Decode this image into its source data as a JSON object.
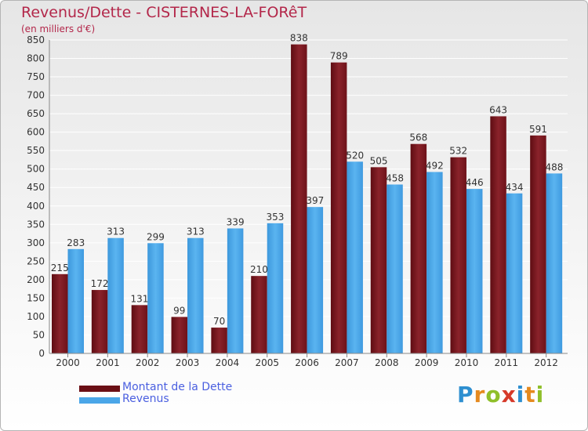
{
  "title": "Revenus/Dette - CISTERNES-LA-FORêT",
  "subtitle": "(en milliers d'€)",
  "legend": {
    "dette": "Montant de la Dette",
    "revenus": "Revenus"
  },
  "logo": "Proxiti",
  "colors": {
    "dette": "#8a1e25",
    "revenus": "#4aa6e8",
    "grid": "#ffffff",
    "axis_text": "#333333"
  },
  "chart_data": {
    "type": "bar",
    "categories": [
      "2000",
      "2001",
      "2002",
      "2003",
      "2004",
      "2005",
      "2006",
      "2007",
      "2008",
      "2009",
      "2010",
      "2011",
      "2012"
    ],
    "series": [
      {
        "name": "Montant de la Dette",
        "values": [
          215,
          172,
          131,
          99,
          70,
          210,
          838,
          789,
          505,
          568,
          532,
          643,
          591
        ]
      },
      {
        "name": "Revenus",
        "values": [
          283,
          313,
          299,
          313,
          339,
          353,
          397,
          520,
          458,
          492,
          446,
          434,
          488
        ]
      }
    ],
    "ylim": [
      0,
      850
    ],
    "yticks": [
      0,
      50,
      100,
      150,
      200,
      250,
      300,
      350,
      400,
      450,
      500,
      550,
      600,
      650,
      700,
      750,
      800,
      850
    ],
    "grid": true,
    "legend_position": "bottom-left"
  }
}
